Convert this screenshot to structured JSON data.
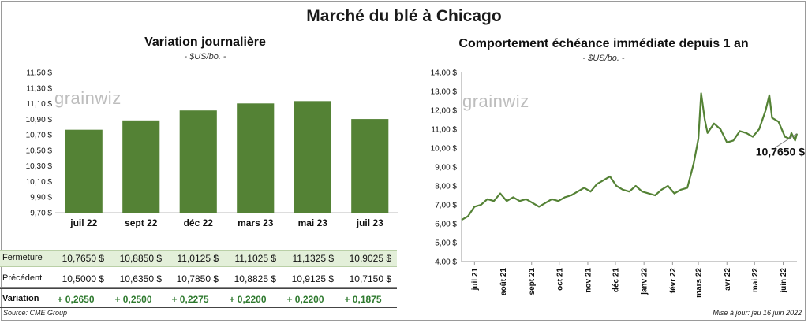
{
  "title": "Marché du blé à Chicago",
  "watermark": "grainwiz",
  "source": "Source: CME Group",
  "updated": "Mise à jour: jeu 16 juin 2022",
  "colors": {
    "bar": "#548235",
    "line": "#548235",
    "table_highlight": "#e3efd9"
  },
  "chart_data": [
    {
      "type": "bar",
      "title": "Variation journalière",
      "unit": "- $US/bo. -",
      "categories": [
        "juil 22",
        "sept 22",
        "déc 22",
        "mars 23",
        "mai 23",
        "juil 23"
      ],
      "values": [
        10.765,
        10.885,
        11.0125,
        11.1025,
        11.1325,
        10.9025
      ],
      "ylim": [
        9.7,
        11.5
      ],
      "yticks": [
        "11,50 $",
        "11,30 $",
        "11,10 $",
        "10,90 $",
        "10,70 $",
        "10,50 $",
        "10,30 $",
        "10,10 $",
        "9,90 $",
        "9,70 $"
      ],
      "table": {
        "rows": [
          {
            "label": "Fermeture",
            "values": [
              "10,7650  $",
              "10,8850  $",
              "11,0125  $",
              "11,1025  $",
              "11,1325  $",
              "10,9025  $"
            ]
          },
          {
            "label": "Précédent",
            "values": [
              "10,5000  $",
              "10,6350  $",
              "10,7850  $",
              "10,8825  $",
              "10,9125  $",
              "10,7150  $"
            ]
          },
          {
            "label": "Variation",
            "values": [
              "+ 0,2650",
              "+ 0,2500",
              "+ 0,2275",
              "+ 0,2200",
              "+ 0,2200",
              "+ 0,1875"
            ]
          }
        ]
      }
    },
    {
      "type": "line",
      "title": "Comportement  échéance immédiate depuis 1 an",
      "unit": "- $US/bo. -",
      "ylim": [
        4.0,
        14.0
      ],
      "yticks": [
        "14,00 $",
        "13,00 $",
        "12,00 $",
        "11,00 $",
        "10,00 $",
        "9,00 $",
        "8,00 $",
        "7,00 $",
        "6,00 $",
        "5,00 $",
        "4,00 $"
      ],
      "xticks": [
        "juil 21",
        "août 21",
        "sept 21",
        "oct 21",
        "nov 21",
        "déc 21",
        "janv 22",
        "févr 22",
        "mars 22",
        "avr 22",
        "mai 22",
        "juin 22"
      ],
      "last_value_label": "10,7650 $",
      "series": [
        {
          "x": [
            "2021-06-17",
            "2021-06-24",
            "2021-07-01",
            "2021-07-08",
            "2021-07-15",
            "2021-07-22",
            "2021-07-29",
            "2021-08-05",
            "2021-08-12",
            "2021-08-19",
            "2021-08-26",
            "2021-09-02",
            "2021-09-09",
            "2021-09-16",
            "2021-09-23",
            "2021-09-30",
            "2021-10-07",
            "2021-10-14",
            "2021-10-21",
            "2021-10-28",
            "2021-11-04",
            "2021-11-11",
            "2021-11-18",
            "2021-11-25",
            "2021-12-02",
            "2021-12-09",
            "2021-12-16",
            "2021-12-23",
            "2021-12-30",
            "2022-01-06",
            "2022-01-13",
            "2022-01-20",
            "2022-01-27",
            "2022-02-03",
            "2022-02-10",
            "2022-02-17",
            "2022-02-24",
            "2022-03-01",
            "2022-03-04",
            "2022-03-08",
            "2022-03-11",
            "2022-03-18",
            "2022-03-25",
            "2022-04-01",
            "2022-04-08",
            "2022-04-15",
            "2022-04-22",
            "2022-04-29",
            "2022-05-06",
            "2022-05-13",
            "2022-05-17",
            "2022-05-20",
            "2022-05-27",
            "2022-06-03",
            "2022-06-08",
            "2022-06-10",
            "2022-06-14",
            "2022-06-16"
          ],
          "y": [
            6.2,
            6.4,
            6.9,
            7.0,
            7.3,
            7.2,
            7.6,
            7.2,
            7.4,
            7.2,
            7.3,
            7.1,
            6.9,
            7.1,
            7.3,
            7.2,
            7.4,
            7.5,
            7.7,
            7.9,
            7.7,
            8.1,
            8.3,
            8.5,
            8.0,
            7.8,
            7.7,
            8.0,
            7.7,
            7.6,
            7.5,
            7.8,
            8.0,
            7.6,
            7.8,
            7.9,
            9.2,
            10.5,
            12.9,
            11.5,
            10.8,
            11.3,
            11.0,
            10.3,
            10.4,
            10.9,
            10.8,
            10.6,
            11.0,
            12.0,
            12.8,
            11.6,
            11.4,
            10.6,
            10.5,
            10.8,
            10.4,
            10.765
          ]
        }
      ]
    }
  ]
}
